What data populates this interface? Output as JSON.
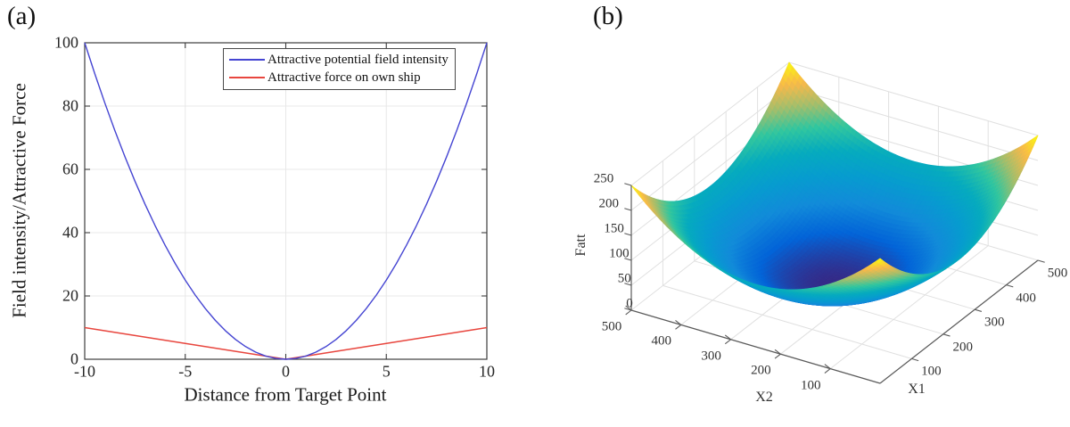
{
  "panels": {
    "a": "(a)",
    "b": "(b)"
  },
  "colors": {
    "axis_box_2d": "#3c3c3c",
    "grid_2d": "#e8e8e8",
    "axis_3d": "#5a5a5a",
    "grid_3d": "#e0e0e0",
    "text": "#262626",
    "background": "#ffffff"
  },
  "chart_data": [
    {
      "type": "line",
      "title": "",
      "xlabel": "Distance from Target Point",
      "ylabel": "Field intensity/Attractive Force",
      "xlim": [
        -10,
        10
      ],
      "ylim": [
        0,
        100
      ],
      "xticks": [
        -10,
        -5,
        0,
        5,
        10
      ],
      "yticks": [
        0,
        20,
        40,
        60,
        80,
        100
      ],
      "grid": true,
      "legend_position": "top-center-right",
      "series": [
        {
          "name": "Attractive potential field intensity",
          "color": "#4545d2",
          "shape": "y = x^2",
          "x": [
            -10,
            -9.5,
            -9,
            -8.5,
            -8,
            -7.5,
            -7,
            -6.5,
            -6,
            -5.5,
            -5,
            -4.5,
            -4,
            -3.5,
            -3,
            -2.5,
            -2,
            -1.5,
            -1,
            -0.5,
            0,
            0.5,
            1,
            1.5,
            2,
            2.5,
            3,
            3.5,
            4,
            4.5,
            5,
            5.5,
            6,
            6.5,
            7,
            7.5,
            8,
            8.5,
            9,
            9.5,
            10
          ],
          "y": [
            100,
            90.25,
            81,
            72.25,
            64,
            56.25,
            49,
            42.25,
            36,
            30.25,
            25,
            20.25,
            16,
            12.25,
            9,
            6.25,
            4,
            2.25,
            1,
            0.25,
            0,
            0.25,
            1,
            2.25,
            4,
            6.25,
            9,
            12.25,
            16,
            20.25,
            25,
            30.25,
            36,
            42.25,
            49,
            56.25,
            64,
            72.25,
            81,
            90.25,
            100
          ]
        },
        {
          "name": "Attractive force on own ship",
          "color": "#e8463e",
          "shape": "y = |x|",
          "x": [
            -10,
            0,
            10
          ],
          "y": [
            10,
            0,
            10
          ]
        }
      ]
    },
    {
      "type": "surface",
      "xlabel": "X1",
      "ylabel": "X2",
      "zlabel": "Fatt",
      "xlim": [
        0,
        500
      ],
      "ylim": [
        0,
        500
      ],
      "zlim": [
        0,
        250
      ],
      "xticks": [
        100,
        200,
        300,
        400,
        500
      ],
      "yticks": [
        100,
        200,
        300,
        400,
        500
      ],
      "zticks": [
        0,
        50,
        100,
        150,
        200,
        250
      ],
      "function": {
        "form": "bowl",
        "center": [
          250,
          250
        ],
        "scale": 0.002,
        "description": "Fatt(x1,x2) = 0.002*((x1-250)^2 + (x2-250)^2)"
      },
      "grid": true,
      "colormap": "parula",
      "colormap_stops": [
        {
          "t": 0.0,
          "rgb": [
            53,
            42,
            135
          ]
        },
        {
          "t": 0.125,
          "rgb": [
            3,
            100,
            216
          ]
        },
        {
          "t": 0.25,
          "rgb": [
            18,
            139,
            217
          ]
        },
        {
          "t": 0.375,
          "rgb": [
            7,
            156,
            207
          ]
        },
        {
          "t": 0.5,
          "rgb": [
            6,
            171,
            190
          ]
        },
        {
          "t": 0.625,
          "rgb": [
            49,
            198,
            159
          ]
        },
        {
          "t": 0.75,
          "rgb": [
            165,
            190,
            107
          ]
        },
        {
          "t": 0.875,
          "rgb": [
            249,
            185,
            73
          ]
        },
        {
          "t": 1.0,
          "rgb": [
            249,
            251,
            14
          ]
        }
      ],
      "view": {
        "azimuth": -37.5,
        "elevation": 30
      }
    }
  ]
}
